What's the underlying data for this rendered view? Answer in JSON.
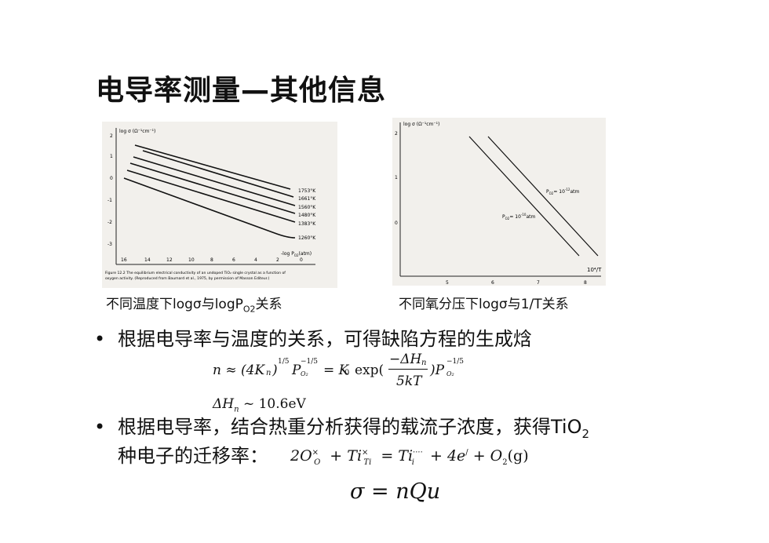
{
  "title": "电导率测量—其他信息",
  "figure_left": {
    "axis_label": "log σ (Ω⁻¹cm⁻¹)",
    "y_ticks": [
      "2",
      "1",
      "0",
      "-1",
      "-2",
      "-3"
    ],
    "x_ticks": [
      "16",
      "14",
      "12",
      "10",
      "8",
      "6",
      "4",
      "2",
      "0"
    ],
    "x_axis_label": "-log P",
    "x_axis_label_sub": "O2",
    "x_axis_label_unit": "(atm)",
    "curve_labels": [
      "1753°K",
      "1661°K",
      "1560°K",
      "1480°K",
      "1383°K",
      "1260°K"
    ],
    "caption_line1": "Figure 12.2  The equilibrium electrical conductivity of an undoped TiO₂ single crystal as a function of",
    "caption_line2": "oxygen activity. (Reproduced from Baumard et al., 1975, by permission of Masson Editeur.)"
  },
  "figure_right": {
    "axis_label": "log σ (Ω⁻¹cm⁻¹)",
    "y_ticks": [
      "2",
      "1",
      "0"
    ],
    "x_ticks": [
      "5",
      "6",
      "7",
      "8"
    ],
    "x_axis_label": "10⁴/T",
    "line_labels": [
      "P",
      "O2",
      "= 10",
      "-12",
      "atm",
      "P",
      "O2",
      "= 10",
      "-10",
      "atm"
    ]
  },
  "caption_left": {
    "part1": "不同温度下logσ与logP",
    "sub": "O2",
    "part2": "关系"
  },
  "caption_right": "不同氧分压下logσ与1/T关系",
  "bullet1": "根据电导率与温度的关系，可得缺陷方程的生成焓",
  "eq1": {
    "lhs": "n ≈ (4K",
    "n_sub": "n",
    "exp1": "1/5",
    "p": "P",
    "p_sub": "O₂",
    "exp2": "−1/5",
    "eq_k0": "= K",
    "k0_sub": "0",
    "exp_word": "exp(",
    "num": "−ΔH",
    "num_sub": "n",
    "den": "5kT",
    "close": ")P",
    "p2_sub": "O₂",
    "exp3": "−1/5"
  },
  "eq2": {
    "delta": "ΔH",
    "sub": "n",
    "rest": " ~ 10.6eV"
  },
  "bullet2_line1": "根据电导率，结合热重分析获得的载流子浓度，获得TiO",
  "bullet2_sub": "2",
  "bullet2_line2": "种电子的迁移率：",
  "eq3": "2O",
  "eq3_parts": {
    "o_sup": "×",
    "o_sub": "O",
    "plus1": " + Ti",
    "ti_sup": "×",
    "ti_sub": "Ti",
    "eq": " = Ti",
    "ti2_sup": "····",
    "ti2_sub": "i",
    "plus2": " + 4e",
    "e_sup": "/",
    "plus3": " + O",
    "o2_sub": "2",
    "tail": "(g)"
  },
  "eq4": "σ = nQu"
}
